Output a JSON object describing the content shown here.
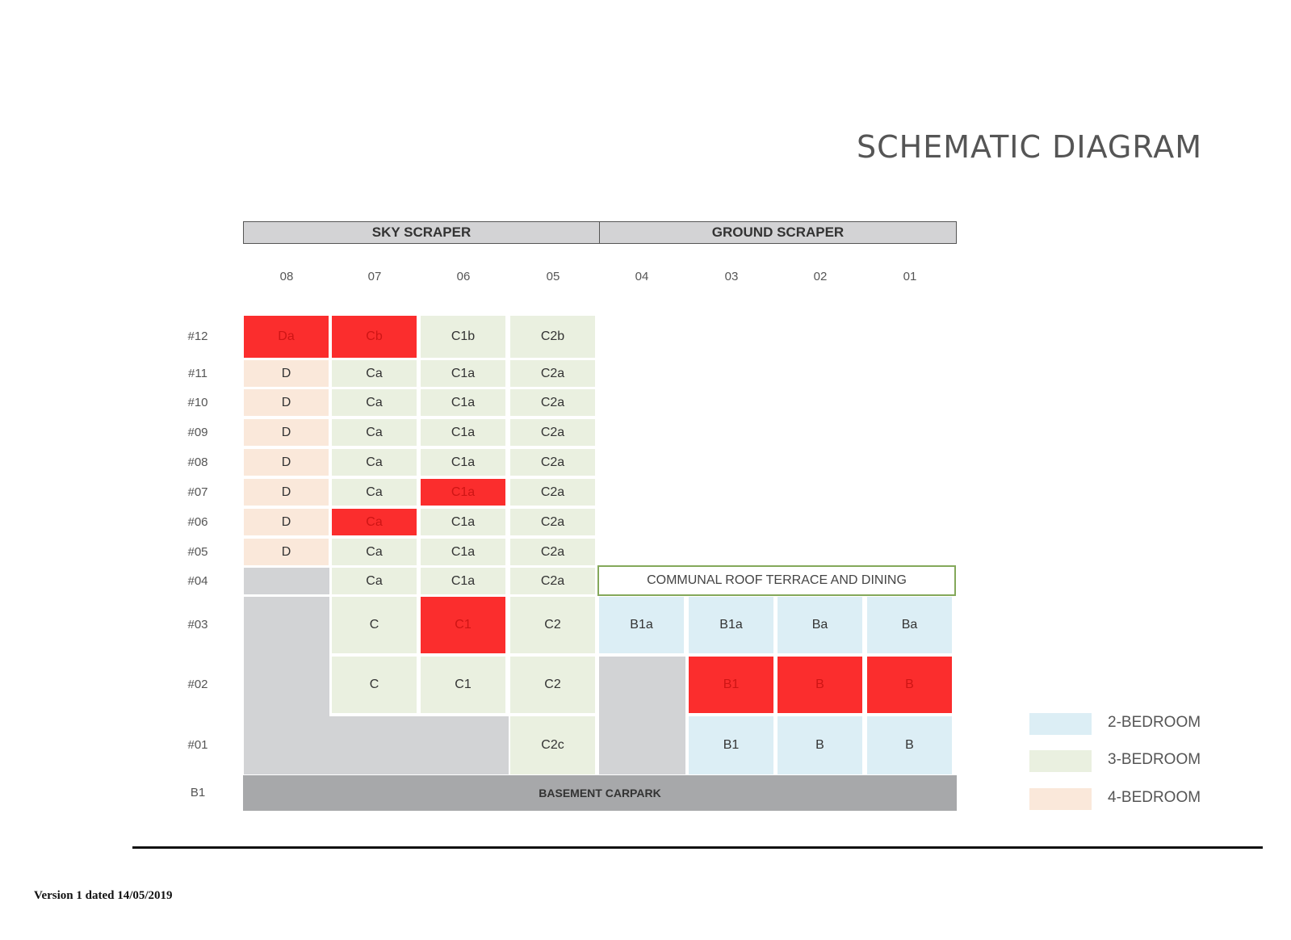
{
  "title": "SCHEMATIC DIAGRAM",
  "blocks": {
    "sky": "SKY SCRAPER",
    "ground": "GROUND SCRAPER"
  },
  "columns": [
    "08",
    "07",
    "06",
    "05",
    "04",
    "03",
    "02",
    "01"
  ],
  "floors": [
    "#12",
    "#11",
    "#10",
    "#09",
    "#08",
    "#07",
    "#06",
    "#05",
    "#04",
    "#03",
    "#02",
    "#01",
    "B1"
  ],
  "units": [
    {
      "floor": "#12",
      "col": "08",
      "type": "Da",
      "category": "sold"
    },
    {
      "floor": "#12",
      "col": "07",
      "type": "Cb",
      "category": "sold"
    },
    {
      "floor": "#12",
      "col": "06",
      "type": "C1b",
      "category": "3-bedroom"
    },
    {
      "floor": "#12",
      "col": "05",
      "type": "C2b",
      "category": "3-bedroom"
    },
    {
      "floor": "#11",
      "col": "08",
      "type": "D",
      "category": "4-bedroom"
    },
    {
      "floor": "#11",
      "col": "07",
      "type": "Ca",
      "category": "3-bedroom"
    },
    {
      "floor": "#11",
      "col": "06",
      "type": "C1a",
      "category": "3-bedroom"
    },
    {
      "floor": "#11",
      "col": "05",
      "type": "C2a",
      "category": "3-bedroom"
    },
    {
      "floor": "#10",
      "col": "08",
      "type": "D",
      "category": "4-bedroom"
    },
    {
      "floor": "#10",
      "col": "07",
      "type": "Ca",
      "category": "3-bedroom"
    },
    {
      "floor": "#10",
      "col": "06",
      "type": "C1a",
      "category": "3-bedroom"
    },
    {
      "floor": "#10",
      "col": "05",
      "type": "C2a",
      "category": "3-bedroom"
    },
    {
      "floor": "#09",
      "col": "08",
      "type": "D",
      "category": "4-bedroom"
    },
    {
      "floor": "#09",
      "col": "07",
      "type": "Ca",
      "category": "3-bedroom"
    },
    {
      "floor": "#09",
      "col": "06",
      "type": "C1a",
      "category": "3-bedroom"
    },
    {
      "floor": "#09",
      "col": "05",
      "type": "C2a",
      "category": "3-bedroom"
    },
    {
      "floor": "#08",
      "col": "08",
      "type": "D",
      "category": "4-bedroom"
    },
    {
      "floor": "#08",
      "col": "07",
      "type": "Ca",
      "category": "3-bedroom"
    },
    {
      "floor": "#08",
      "col": "06",
      "type": "C1a",
      "category": "3-bedroom"
    },
    {
      "floor": "#08",
      "col": "05",
      "type": "C2a",
      "category": "3-bedroom"
    },
    {
      "floor": "#07",
      "col": "08",
      "type": "D",
      "category": "4-bedroom"
    },
    {
      "floor": "#07",
      "col": "07",
      "type": "Ca",
      "category": "3-bedroom"
    },
    {
      "floor": "#07",
      "col": "06",
      "type": "C1a",
      "category": "sold"
    },
    {
      "floor": "#07",
      "col": "05",
      "type": "C2a",
      "category": "3-bedroom"
    },
    {
      "floor": "#06",
      "col": "08",
      "type": "D",
      "category": "4-bedroom"
    },
    {
      "floor": "#06",
      "col": "07",
      "type": "Ca",
      "category": "sold"
    },
    {
      "floor": "#06",
      "col": "06",
      "type": "C1a",
      "category": "3-bedroom"
    },
    {
      "floor": "#06",
      "col": "05",
      "type": "C2a",
      "category": "3-bedroom"
    },
    {
      "floor": "#05",
      "col": "08",
      "type": "D",
      "category": "4-bedroom"
    },
    {
      "floor": "#05",
      "col": "07",
      "type": "Ca",
      "category": "3-bedroom"
    },
    {
      "floor": "#05",
      "col": "06",
      "type": "C1a",
      "category": "3-bedroom"
    },
    {
      "floor": "#05",
      "col": "05",
      "type": "C2a",
      "category": "3-bedroom"
    },
    {
      "floor": "#04",
      "col": "07",
      "type": "Ca",
      "category": "3-bedroom"
    },
    {
      "floor": "#04",
      "col": "06",
      "type": "C1a",
      "category": "3-bedroom"
    },
    {
      "floor": "#04",
      "col": "05",
      "type": "C2a",
      "category": "3-bedroom"
    },
    {
      "floor": "#03",
      "col": "07",
      "type": "C",
      "category": "3-bedroom"
    },
    {
      "floor": "#03",
      "col": "06",
      "type": "C1",
      "category": "sold"
    },
    {
      "floor": "#03",
      "col": "05",
      "type": "C2",
      "category": "3-bedroom"
    },
    {
      "floor": "#03",
      "col": "04",
      "type": "B1a",
      "category": "2-bedroom"
    },
    {
      "floor": "#03",
      "col": "03",
      "type": "B1a",
      "category": "2-bedroom"
    },
    {
      "floor": "#03",
      "col": "02",
      "type": "Ba",
      "category": "2-bedroom"
    },
    {
      "floor": "#03",
      "col": "01",
      "type": "Ba",
      "category": "2-bedroom"
    },
    {
      "floor": "#02",
      "col": "07",
      "type": "C",
      "category": "3-bedroom"
    },
    {
      "floor": "#02",
      "col": "06",
      "type": "C1",
      "category": "3-bedroom"
    },
    {
      "floor": "#02",
      "col": "05",
      "type": "C2",
      "category": "3-bedroom"
    },
    {
      "floor": "#02",
      "col": "03",
      "type": "B1",
      "category": "sold"
    },
    {
      "floor": "#02",
      "col": "02",
      "type": "B",
      "category": "sold"
    },
    {
      "floor": "#02",
      "col": "01",
      "type": "B",
      "category": "sold"
    },
    {
      "floor": "#01",
      "col": "05",
      "type": "C2c",
      "category": "3-bedroom"
    },
    {
      "floor": "#01",
      "col": "03",
      "type": "B1",
      "category": "2-bedroom"
    },
    {
      "floor": "#01",
      "col": "02",
      "type": "B",
      "category": "2-bedroom"
    },
    {
      "floor": "#01",
      "col": "01",
      "type": "B",
      "category": "2-bedroom"
    }
  ],
  "communal_terrace": "COMMUNAL ROOF TERRACE AND DINING",
  "basement": "BASEMENT CARPARK",
  "legend": [
    {
      "label": "2-BEDROOM",
      "color": "#dceef5"
    },
    {
      "label": "3-BEDROOM",
      "color": "#eaf0e0"
    },
    {
      "label": "4-BEDROOM",
      "color": "#fae8da"
    }
  ],
  "colors": {
    "sold": "#fb2d2d",
    "non_residential": "#d2d3d5",
    "basement": "#a7a8aa",
    "terrace_border": "#84a85a"
  },
  "version": "Version 1 dated 14/05/2019"
}
